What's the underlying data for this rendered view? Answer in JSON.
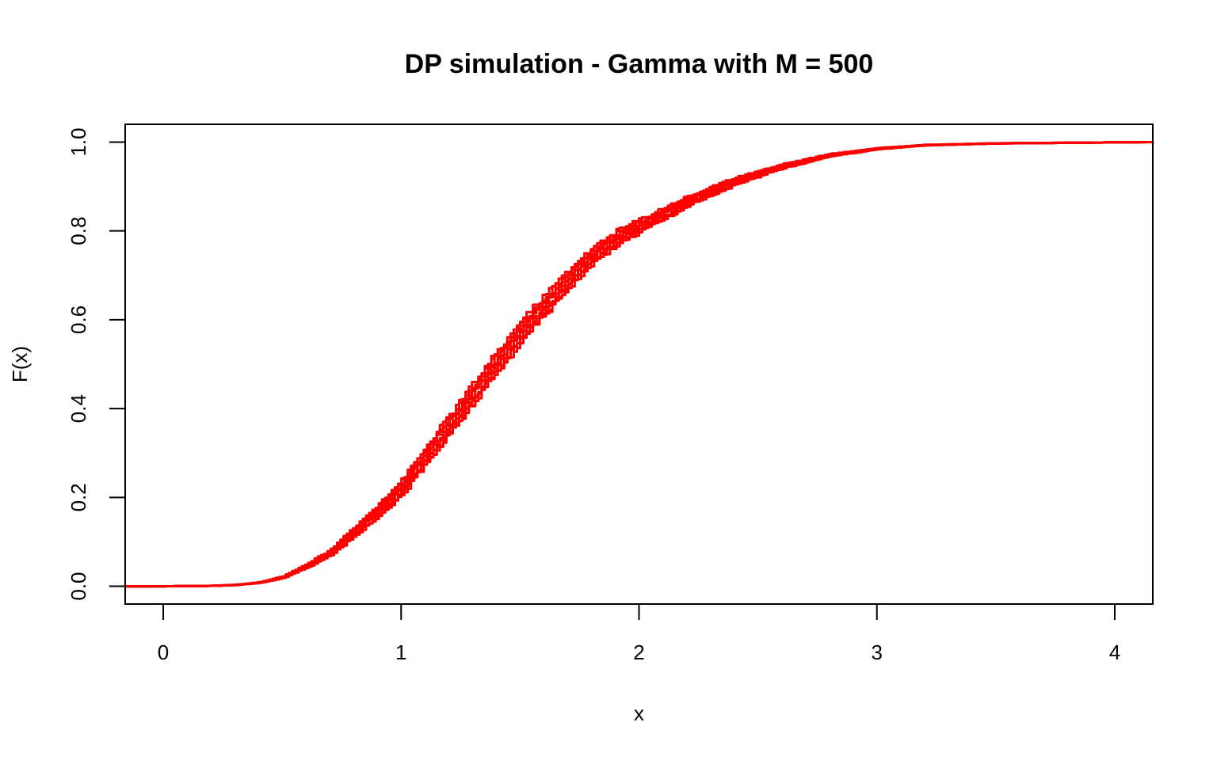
{
  "chart_data": {
    "type": "line",
    "title": "DP simulation - Gamma with M = 500",
    "xlabel": "x",
    "ylabel": "F(x)",
    "xlim": [
      -0.16,
      4.16
    ],
    "ylim": [
      -0.04,
      1.04
    ],
    "xticks": [
      0,
      1,
      2,
      3,
      4
    ],
    "yticks": [
      0.0,
      0.2,
      0.4,
      0.6,
      0.8,
      1.0
    ],
    "xtick_labels": [
      "0",
      "1",
      "2",
      "3",
      "4"
    ],
    "ytick_labels": [
      "0.0",
      "0.2",
      "0.4",
      "0.6",
      "0.8",
      "1.0"
    ],
    "grid": false,
    "legend": false,
    "line_color": "#ff0000",
    "base_curve": {
      "x": [
        -0.16,
        0.0,
        0.2,
        0.3,
        0.4,
        0.5,
        0.6,
        0.7,
        0.8,
        0.9,
        1.0,
        1.1,
        1.2,
        1.3,
        1.4,
        1.5,
        1.6,
        1.7,
        1.8,
        1.9,
        2.0,
        2.2,
        2.4,
        2.6,
        2.8,
        3.0,
        3.2,
        3.5,
        4.16
      ],
      "y": [
        0.0,
        0.0,
        0.001,
        0.003,
        0.008,
        0.02,
        0.045,
        0.075,
        0.12,
        0.17,
        0.22,
        0.29,
        0.36,
        0.43,
        0.5,
        0.57,
        0.63,
        0.69,
        0.74,
        0.78,
        0.81,
        0.865,
        0.91,
        0.945,
        0.97,
        0.985,
        0.993,
        0.997,
        1.0
      ]
    },
    "series": [
      {
        "y_offset": 0.0
      },
      {
        "y_offset": 0.012
      },
      {
        "y_offset": -0.012
      },
      {
        "y_offset": 0.02
      },
      {
        "y_offset": -0.02
      },
      {
        "y_offset": 0.006
      },
      {
        "y_offset": -0.006
      },
      {
        "y_offset": 0.016
      },
      {
        "y_offset": -0.016
      },
      {
        "y_offset": 0.026
      }
    ]
  }
}
